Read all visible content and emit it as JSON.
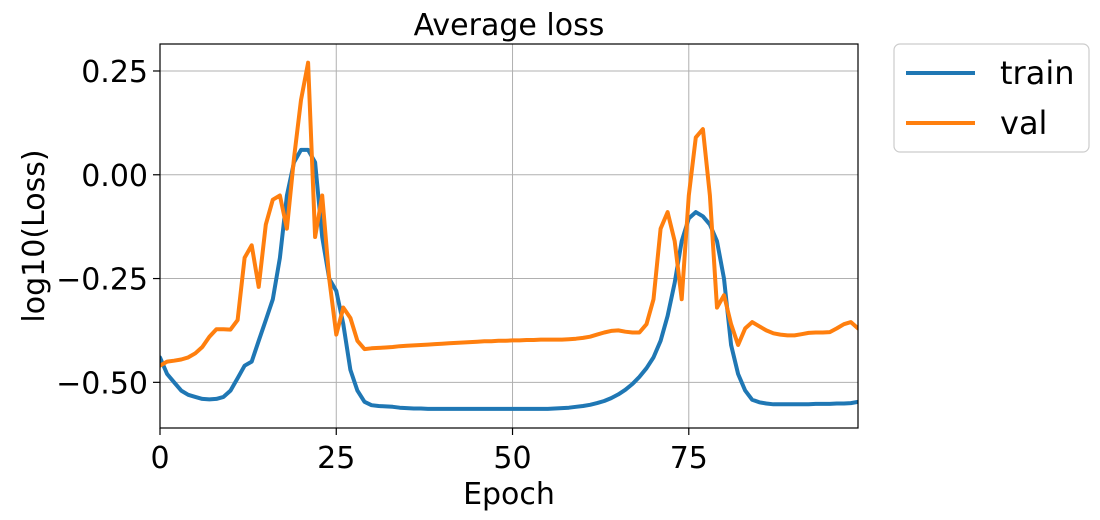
{
  "chart_data": {
    "type": "line",
    "title": "Average loss",
    "xlabel": "Epoch",
    "ylabel": "log10(Loss)",
    "xlim": [
      0,
      99
    ],
    "ylim": [
      -0.61,
      0.315
    ],
    "xticks": [
      0,
      25,
      50,
      75
    ],
    "yticks": [
      0.25,
      0.0,
      -0.25,
      -0.5
    ],
    "xtick_labels": [
      "0",
      "25",
      "50",
      "75"
    ],
    "ytick_labels": [
      "0.25",
      "0.00",
      "−0.25",
      "−0.50"
    ],
    "grid": true,
    "legend_position": "outside-top-right",
    "series": [
      {
        "name": "train",
        "color": "#1f77b4",
        "x": [
          0,
          1,
          2,
          3,
          4,
          5,
          6,
          7,
          8,
          9,
          10,
          11,
          12,
          13,
          14,
          15,
          16,
          17,
          18,
          19,
          20,
          21,
          22,
          23,
          24,
          25,
          26,
          27,
          28,
          29,
          30,
          31,
          32,
          33,
          34,
          35,
          36,
          37,
          38,
          39,
          40,
          41,
          42,
          43,
          44,
          45,
          46,
          47,
          48,
          49,
          50,
          51,
          52,
          53,
          54,
          55,
          56,
          57,
          58,
          59,
          60,
          61,
          62,
          63,
          64,
          65,
          66,
          67,
          68,
          69,
          70,
          71,
          72,
          73,
          74,
          75,
          76,
          77,
          78,
          79,
          80,
          81,
          82,
          83,
          84,
          85,
          86,
          87,
          88,
          89,
          90,
          91,
          92,
          93,
          94,
          95,
          96,
          97,
          98,
          99
        ],
        "y": [
          -0.44,
          -0.48,
          -0.5,
          -0.52,
          -0.53,
          -0.535,
          -0.54,
          -0.541,
          -0.54,
          -0.535,
          -0.52,
          -0.49,
          -0.46,
          -0.45,
          -0.4,
          -0.35,
          -0.3,
          -0.2,
          -0.05,
          0.03,
          0.06,
          0.06,
          0.03,
          -0.15,
          -0.25,
          -0.28,
          -0.36,
          -0.47,
          -0.52,
          -0.547,
          -0.555,
          -0.557,
          -0.558,
          -0.559,
          -0.561,
          -0.562,
          -0.563,
          -0.563,
          -0.564,
          -0.564,
          -0.564,
          -0.564,
          -0.564,
          -0.564,
          -0.564,
          -0.564,
          -0.564,
          -0.564,
          -0.564,
          -0.564,
          -0.564,
          -0.564,
          -0.564,
          -0.564,
          -0.564,
          -0.564,
          -0.563,
          -0.562,
          -0.561,
          -0.559,
          -0.557,
          -0.554,
          -0.55,
          -0.545,
          -0.538,
          -0.529,
          -0.518,
          -0.504,
          -0.487,
          -0.466,
          -0.44,
          -0.4,
          -0.34,
          -0.26,
          -0.16,
          -0.105,
          -0.09,
          -0.1,
          -0.12,
          -0.16,
          -0.25,
          -0.41,
          -0.48,
          -0.52,
          -0.542,
          -0.548,
          -0.551,
          -0.553,
          -0.553,
          -0.553,
          -0.553,
          -0.553,
          -0.553,
          -0.552,
          -0.552,
          -0.552,
          -0.551,
          -0.551,
          -0.55,
          -0.547
        ]
      },
      {
        "name": "val",
        "color": "#ff7f0e",
        "x": [
          0,
          1,
          2,
          3,
          4,
          5,
          6,
          7,
          8,
          9,
          10,
          11,
          12,
          13,
          14,
          15,
          16,
          17,
          18,
          19,
          20,
          21,
          22,
          23,
          24,
          25,
          26,
          27,
          28,
          29,
          30,
          31,
          32,
          33,
          34,
          35,
          36,
          37,
          38,
          39,
          40,
          41,
          42,
          43,
          44,
          45,
          46,
          47,
          48,
          49,
          50,
          51,
          52,
          53,
          54,
          55,
          56,
          57,
          58,
          59,
          60,
          61,
          62,
          63,
          64,
          65,
          66,
          67,
          68,
          69,
          70,
          71,
          72,
          73,
          74,
          75,
          76,
          77,
          78,
          79,
          80,
          81,
          82,
          83,
          84,
          85,
          86,
          87,
          88,
          89,
          90,
          91,
          92,
          93,
          94,
          95,
          96,
          97,
          98,
          99
        ],
        "y": [
          -0.46,
          -0.45,
          -0.448,
          -0.445,
          -0.44,
          -0.43,
          -0.415,
          -0.39,
          -0.372,
          -0.372,
          -0.373,
          -0.35,
          -0.2,
          -0.17,
          -0.27,
          -0.12,
          -0.06,
          -0.05,
          -0.13,
          0.04,
          0.18,
          0.27,
          -0.15,
          -0.05,
          -0.25,
          -0.385,
          -0.32,
          -0.345,
          -0.4,
          -0.42,
          -0.418,
          -0.417,
          -0.416,
          -0.415,
          -0.413,
          -0.412,
          -0.411,
          -0.41,
          -0.409,
          -0.408,
          -0.407,
          -0.406,
          -0.405,
          -0.404,
          -0.403,
          -0.402,
          -0.401,
          -0.401,
          -0.4,
          -0.4,
          -0.399,
          -0.399,
          -0.398,
          -0.398,
          -0.397,
          -0.397,
          -0.397,
          -0.397,
          -0.396,
          -0.395,
          -0.393,
          -0.39,
          -0.385,
          -0.38,
          -0.376,
          -0.375,
          -0.378,
          -0.38,
          -0.38,
          -0.36,
          -0.3,
          -0.13,
          -0.09,
          -0.16,
          -0.3,
          -0.05,
          0.09,
          0.11,
          -0.05,
          -0.32,
          -0.29,
          -0.36,
          -0.41,
          -0.37,
          -0.355,
          -0.365,
          -0.375,
          -0.382,
          -0.385,
          -0.387,
          -0.387,
          -0.384,
          -0.381,
          -0.38,
          -0.38,
          -0.379,
          -0.37,
          -0.36,
          -0.355,
          -0.37
        ]
      }
    ]
  }
}
